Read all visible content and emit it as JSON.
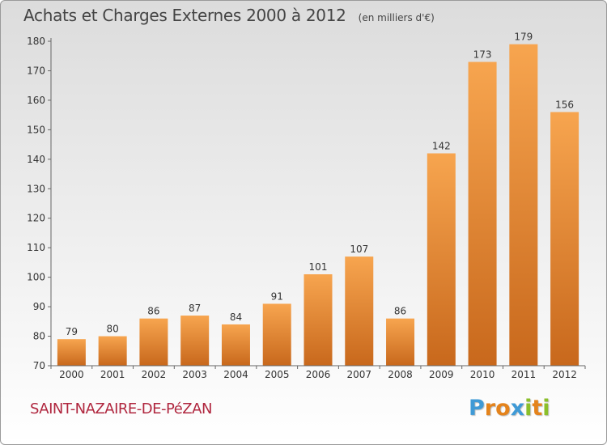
{
  "chart_data": {
    "type": "bar",
    "title": "Achats et Charges Externes 2000 à 2012",
    "subtitle": "(en milliers d'€)",
    "categories": [
      "2000",
      "2001",
      "2002",
      "2003",
      "2004",
      "2005",
      "2006",
      "2007",
      "2008",
      "2009",
      "2010",
      "2011",
      "2012"
    ],
    "values": [
      79,
      80,
      86,
      87,
      84,
      91,
      101,
      107,
      86,
      142,
      173,
      179,
      156
    ],
    "data_labels": [
      "79",
      "80",
      "86",
      "87",
      "84",
      "91",
      "101",
      "107",
      "86",
      "142",
      "173",
      "179",
      "156"
    ],
    "ylim": [
      70,
      180
    ],
    "y_ticks": [
      "70",
      "80",
      "90",
      "100",
      "110",
      "120",
      "130",
      "140",
      "150",
      "160",
      "170",
      "180"
    ],
    "grid": false,
    "legend": "none",
    "bar_color_top": "#f7a54f",
    "bar_color_bottom": "#c8681c"
  },
  "footer": {
    "commune": "SAINT-NAZAIRE-DE-PéZAN"
  },
  "brand": {
    "letters": [
      "P",
      "r",
      "o",
      "x",
      "i",
      "t",
      "i"
    ],
    "colors": [
      "#3f9ad6",
      "#e4831c",
      "#e4831c",
      "#3f9ad6",
      "#8bbf2a",
      "#e4831c",
      "#8bbf2a"
    ]
  }
}
